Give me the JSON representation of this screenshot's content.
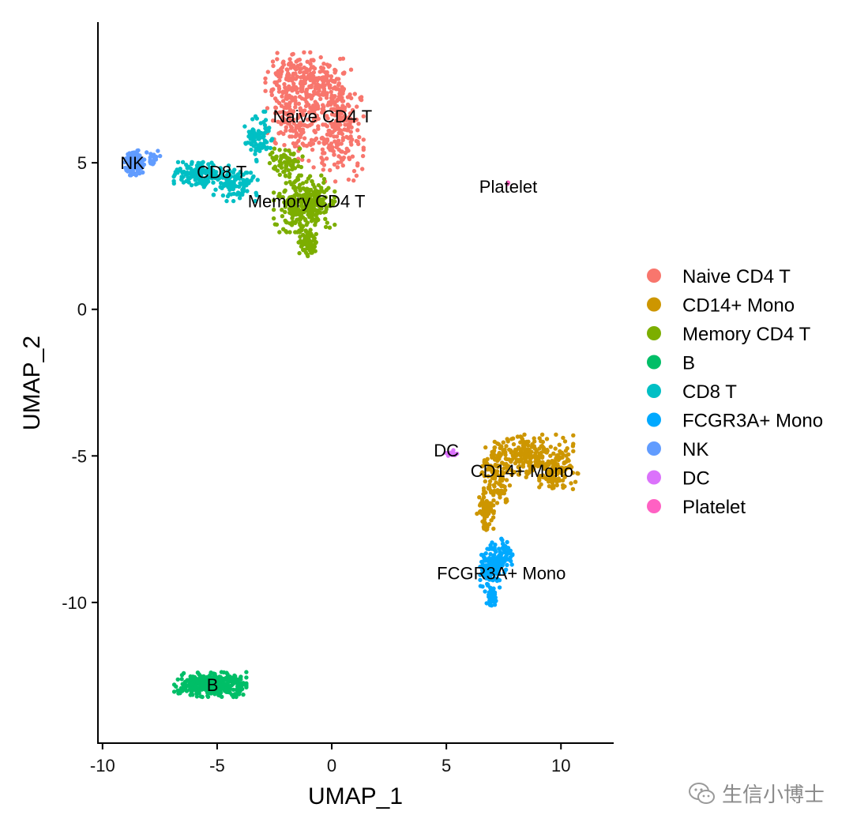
{
  "chart_data": {
    "type": "scatter",
    "title": "",
    "xlabel": "UMAP_1",
    "ylabel": "UMAP_2",
    "xlim": [
      -10.2,
      12.3
    ],
    "ylim": [
      -14.8,
      9.8
    ],
    "xticks": [
      -10,
      -5,
      0,
      5,
      10
    ],
    "xtick_labels": [
      "-10",
      "-5",
      "0",
      "5",
      "10"
    ],
    "yticks": [
      -10,
      -5,
      0,
      5
    ],
    "ytick_labels": [
      "-10",
      "-5",
      "0",
      "5"
    ],
    "grid": false,
    "legend_position": "right",
    "series": [
      {
        "name": "Naive CD4 T",
        "color": "#F8766D",
        "label_at": [
          -0.4,
          6.6
        ],
        "n": 640,
        "blobs": [
          [
            -1.2,
            7.8,
            1.4,
            0.8,
            0.35
          ],
          [
            0.3,
            6.3,
            0.9,
            1.6,
            0.35
          ],
          [
            -1.6,
            6.4,
            1.0,
            1.1,
            0.3
          ]
        ]
      },
      {
        "name": "CD14+ Mono",
        "color": "#CD9600",
        "label_at": [
          8.3,
          -5.5
        ],
        "n": 520,
        "blobs": [
          [
            8.6,
            -5.0,
            1.6,
            0.6,
            0.45
          ],
          [
            9.9,
            -5.6,
            0.7,
            0.5,
            0.2
          ],
          [
            7.1,
            -5.8,
            0.55,
            0.9,
            0.2
          ],
          [
            6.7,
            -7.0,
            0.3,
            0.7,
            0.15
          ]
        ]
      },
      {
        "name": "Memory CD4 T",
        "color": "#7CAE00",
        "label_at": [
          -1.1,
          3.7
        ],
        "n": 460,
        "blobs": [
          [
            -1.2,
            3.6,
            1.1,
            0.8,
            0.7
          ],
          [
            -2.0,
            5.0,
            0.6,
            0.4,
            0.15
          ],
          [
            -1.0,
            2.3,
            0.4,
            0.4,
            0.15
          ]
        ]
      },
      {
        "name": "B",
        "color": "#00BE67",
        "label_at": [
          -5.2,
          -12.8
        ],
        "n": 360,
        "blobs": [
          [
            -5.3,
            -12.8,
            1.3,
            0.35,
            1.0
          ]
        ]
      },
      {
        "name": "CD8 T",
        "color": "#00BFC4",
        "label_at": [
          -4.8,
          4.7
        ],
        "n": 330,
        "blobs": [
          [
            -5.8,
            4.6,
            0.9,
            0.35,
            0.45
          ],
          [
            -4.2,
            4.3,
            0.8,
            0.5,
            0.3
          ],
          [
            -3.2,
            5.9,
            0.5,
            0.7,
            0.25
          ]
        ]
      },
      {
        "name": "FCGR3A+ Mono",
        "color": "#00A9FF",
        "label_at": [
          7.4,
          -9.0
        ],
        "n": 240,
        "blobs": [
          [
            6.9,
            -8.9,
            0.35,
            0.6,
            0.55
          ],
          [
            7.4,
            -8.4,
            0.4,
            0.5,
            0.3
          ],
          [
            7.0,
            -9.8,
            0.2,
            0.25,
            0.15
          ]
        ]
      },
      {
        "name": "NK",
        "color": "#619CFF",
        "label_at": [
          -8.7,
          5.0
        ],
        "n": 170,
        "blobs": [
          [
            -8.6,
            5.0,
            0.35,
            0.35,
            0.9
          ],
          [
            -7.8,
            5.2,
            0.3,
            0.2,
            0.1
          ]
        ]
      },
      {
        "name": "DC",
        "color": "#DB72FB",
        "label_at": [
          5.0,
          -4.8
        ],
        "n": 12,
        "blobs": [
          [
            5.3,
            -4.9,
            0.25,
            0.1,
            1.0
          ]
        ]
      },
      {
        "name": "Platelet",
        "color": "#FF61C3",
        "label_at": [
          7.7,
          4.2
        ],
        "n": 3,
        "blobs": [
          [
            7.7,
            4.3,
            0.04,
            0.05,
            1.0
          ]
        ]
      }
    ]
  },
  "watermark": {
    "icon": "wechat-icon",
    "text": "生信小博士"
  }
}
